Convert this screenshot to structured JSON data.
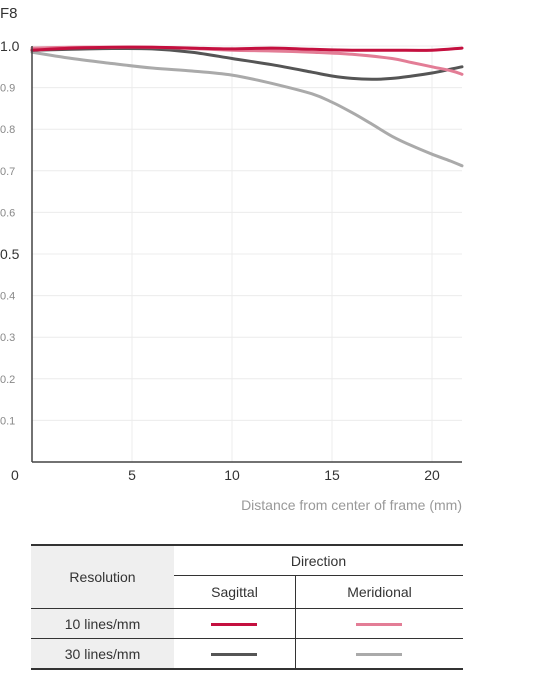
{
  "chart_data": {
    "type": "line",
    "title": "F8",
    "xlabel": "Distance from center of frame (mm)",
    "ylabel": "",
    "xlim": [
      0,
      21.5
    ],
    "ylim": [
      0,
      1.0
    ],
    "x_ticks": [
      "5",
      "10",
      "15",
      "20"
    ],
    "y_ticks": [
      "1.0",
      "0.9",
      "0.8",
      "0.7",
      "0.6",
      "0.5",
      "0.4",
      "0.3",
      "0.2",
      "0.1",
      "0"
    ],
    "grid": true,
    "series": [
      {
        "color": "#c4103f",
        "x": [
          0,
          2,
          4,
          6,
          8,
          10,
          12,
          14,
          16,
          18,
          20,
          21.5
        ],
        "y": [
          0.99,
          0.995,
          0.997,
          0.997,
          0.995,
          0.993,
          0.995,
          0.992,
          0.99,
          0.99,
          0.99,
          0.995
        ]
      },
      {
        "color": "#e37d96",
        "x": [
          0,
          2,
          4,
          6,
          8,
          10,
          12,
          14,
          16,
          18,
          19,
          20,
          21,
          21.5
        ],
        "y": [
          0.995,
          0.997,
          0.997,
          0.997,
          0.994,
          0.99,
          0.988,
          0.985,
          0.98,
          0.97,
          0.96,
          0.95,
          0.94,
          0.932
        ]
      },
      {
        "color": "#555555",
        "x": [
          0,
          2,
          4,
          6,
          8,
          10,
          12,
          14,
          15,
          16,
          17,
          18,
          19,
          20,
          21,
          21.5
        ],
        "y": [
          0.99,
          0.992,
          0.994,
          0.993,
          0.985,
          0.97,
          0.955,
          0.937,
          0.928,
          0.922,
          0.92,
          0.922,
          0.928,
          0.935,
          0.945,
          0.95
        ]
      },
      {
        "color": "#aaaaaa",
        "x": [
          0,
          2,
          4,
          6,
          8,
          10,
          12,
          14,
          15,
          16,
          17,
          18,
          19,
          20,
          21,
          21.5
        ],
        "y": [
          0.985,
          0.97,
          0.958,
          0.947,
          0.94,
          0.93,
          0.91,
          0.885,
          0.865,
          0.84,
          0.812,
          0.783,
          0.76,
          0.74,
          0.722,
          0.712
        ]
      }
    ]
  },
  "legend": {
    "resolution_label": "Resolution",
    "direction_label": "Direction",
    "sagittal_label": "Sagittal",
    "meridional_label": "Meridional",
    "row_10_label": "10 lines/mm",
    "row_30_label": "30 lines/mm",
    "colors": {
      "sagittal_10": "#c4103f",
      "meridional_10": "#e37d96",
      "sagittal_30": "#555555",
      "meridional_30": "#aaaaaa"
    }
  }
}
